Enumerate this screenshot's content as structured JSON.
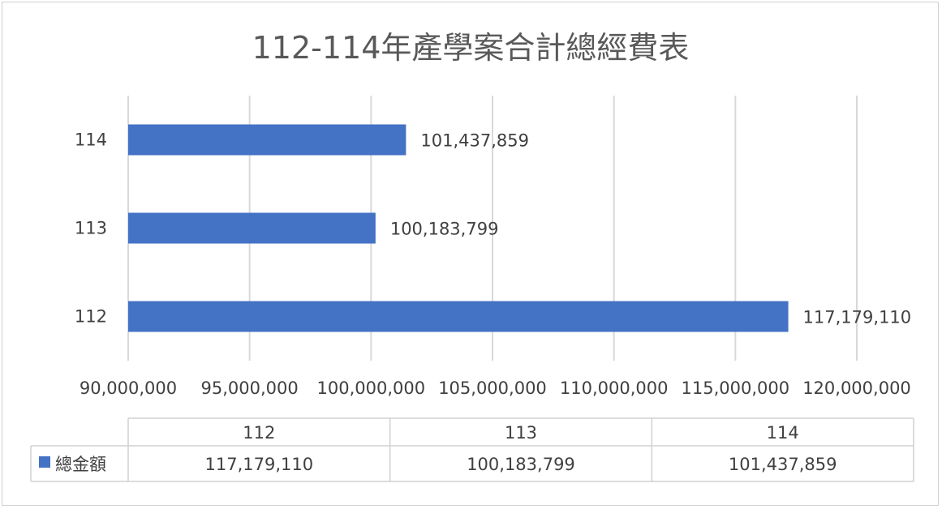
{
  "chart_data": {
    "type": "bar",
    "orientation": "horizontal",
    "title": "112-114年產學案合計總經費表",
    "categories": [
      "112",
      "113",
      "114"
    ],
    "series": [
      {
        "name": "總金額",
        "values": [
          117179110,
          100183799,
          101437859
        ],
        "color": "#4472C4"
      }
    ],
    "value_labels": [
      "117,179,110",
      "100,183,799",
      "101,437,859"
    ],
    "xlim": [
      90000000,
      120000000
    ],
    "x_ticks": [
      90000000,
      95000000,
      100000000,
      105000000,
      110000000,
      115000000,
      120000000
    ],
    "x_tick_labels": [
      "90,000,000",
      "95,000,000",
      "100,000,000",
      "105,000,000",
      "110,000,000",
      "115,000,000",
      "120,000,000"
    ],
    "grid": true,
    "data_table": {
      "headers": [
        "112",
        "113",
        "114"
      ],
      "row_label": "總金額",
      "row_values": [
        "117,179,110",
        "100,183,799",
        "101,437,859"
      ]
    }
  }
}
